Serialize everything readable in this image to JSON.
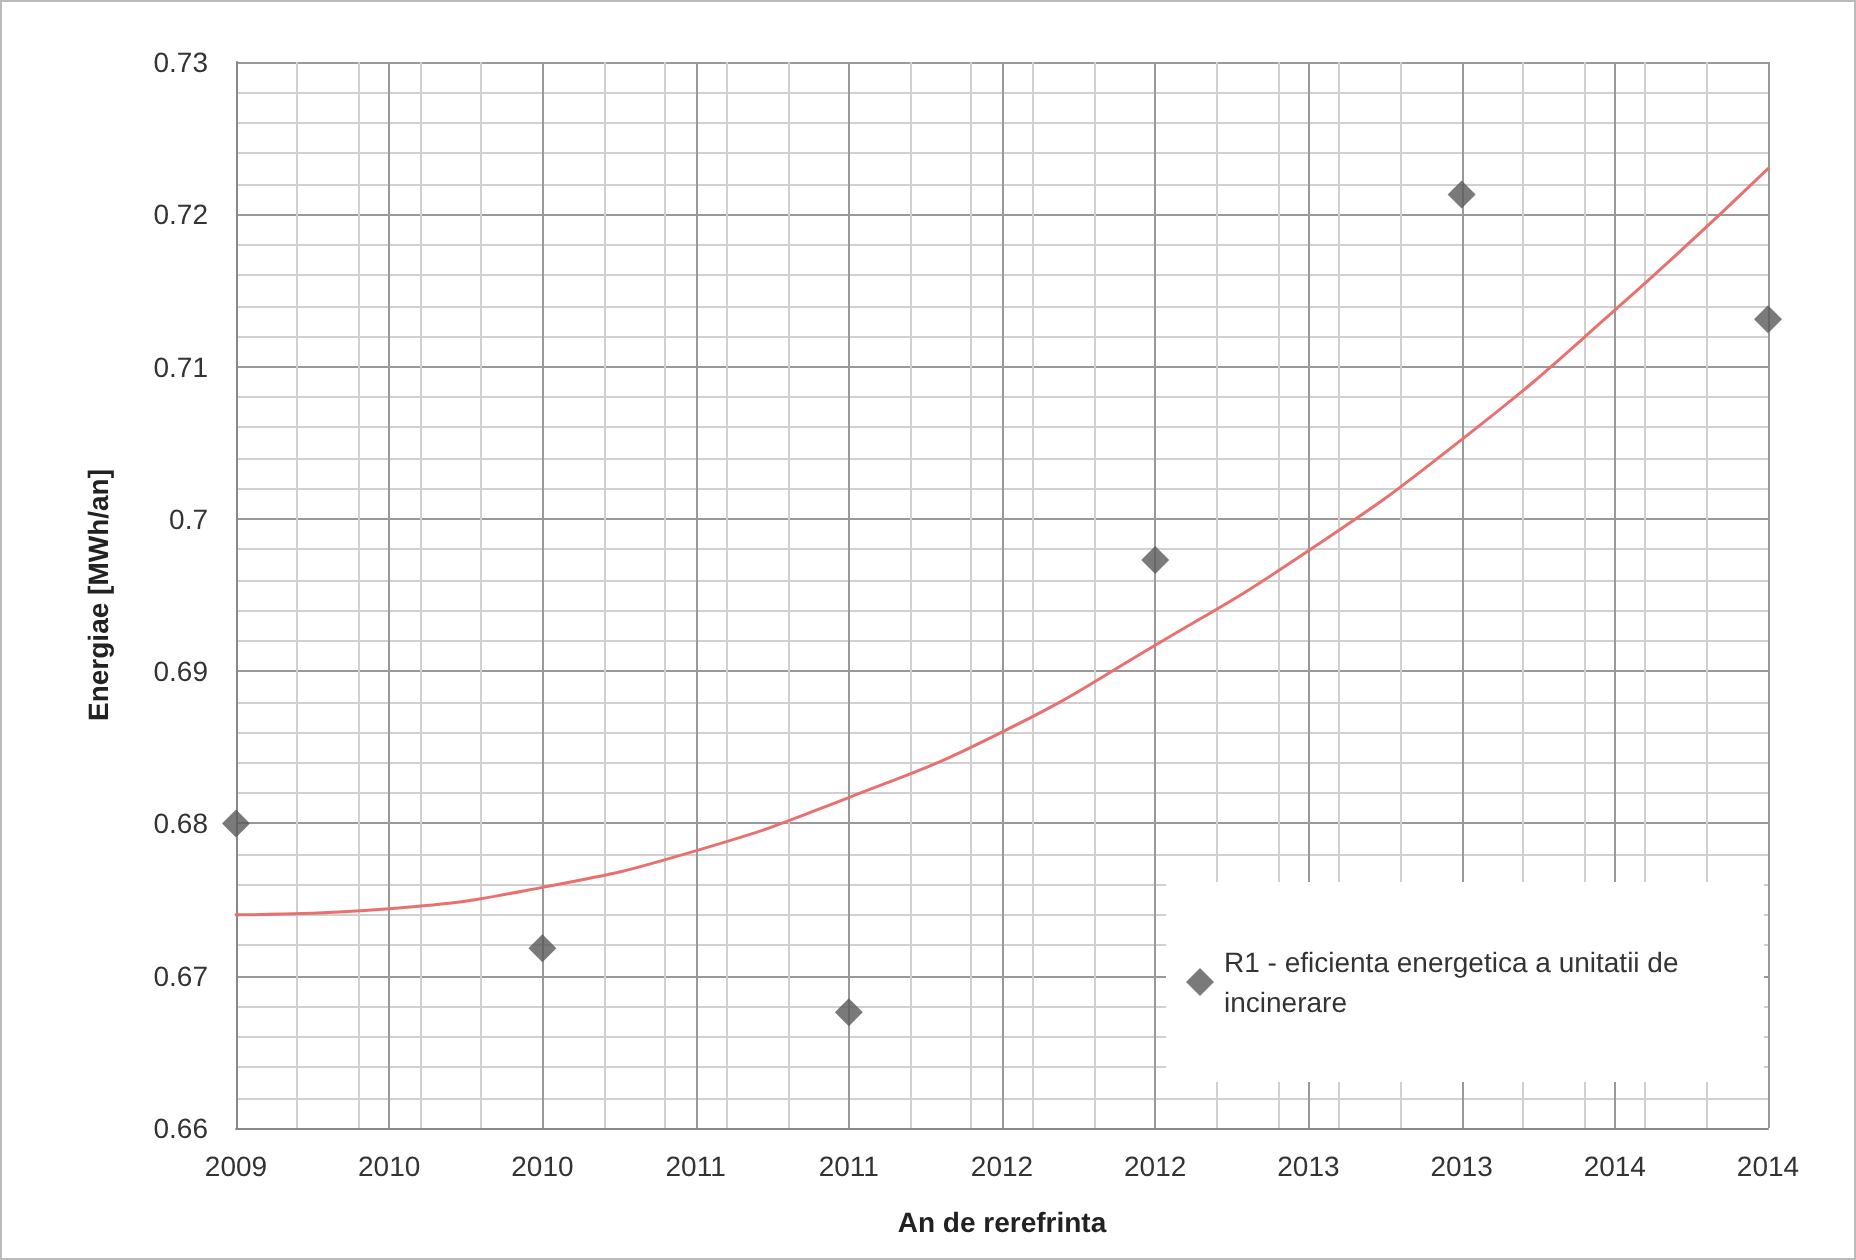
{
  "chart_data": {
    "type": "scatter",
    "xlabel": "An de rerefrinta",
    "ylabel": "Energiae [MWh/an]",
    "x": [
      2009,
      2010,
      2011,
      2012,
      2013,
      2014
    ],
    "series": [
      {
        "name": "R1 - eficienta energetica a unitatii de incinerare",
        "color": "#595959",
        "values": [
          0.68,
          0.6718,
          0.6676,
          0.6973,
          0.7213,
          0.7131
        ],
        "marker": "diamond"
      },
      {
        "type": "line",
        "color": "#e8706e",
        "x": [
          2009,
          2009.5,
          2010,
          2010.5,
          2011,
          2011.5,
          2012,
          2012.5,
          2013,
          2013.5,
          2014
        ],
        "values": [
          0.674,
          0.6744,
          0.6758,
          0.6782,
          0.6817,
          0.686,
          0.6917,
          0.6979,
          0.7052,
          0.7137,
          0.723
        ],
        "marker": "none",
        "line_style": "solid"
      }
    ],
    "xlim": [
      2009,
      2014
    ],
    "xticks": [
      2009,
      {
        "value": 2009.5,
        "label": "2010"
      },
      2010,
      {
        "value": 2010.5,
        "label": "2011"
      },
      2011,
      {
        "value": 2011.5,
        "label": "2012"
      },
      2012,
      {
        "value": 2012.5,
        "label": "2013"
      },
      2013,
      {
        "value": 2013.5,
        "label": "2014"
      },
      2014
    ],
    "ylim": [
      0.66,
      0.73
    ],
    "yticks": [
      0.66,
      0.67,
      0.68,
      0.69,
      0.7,
      0.71,
      0.72,
      0.73
    ],
    "grid": true,
    "legend": "bottom right"
  }
}
